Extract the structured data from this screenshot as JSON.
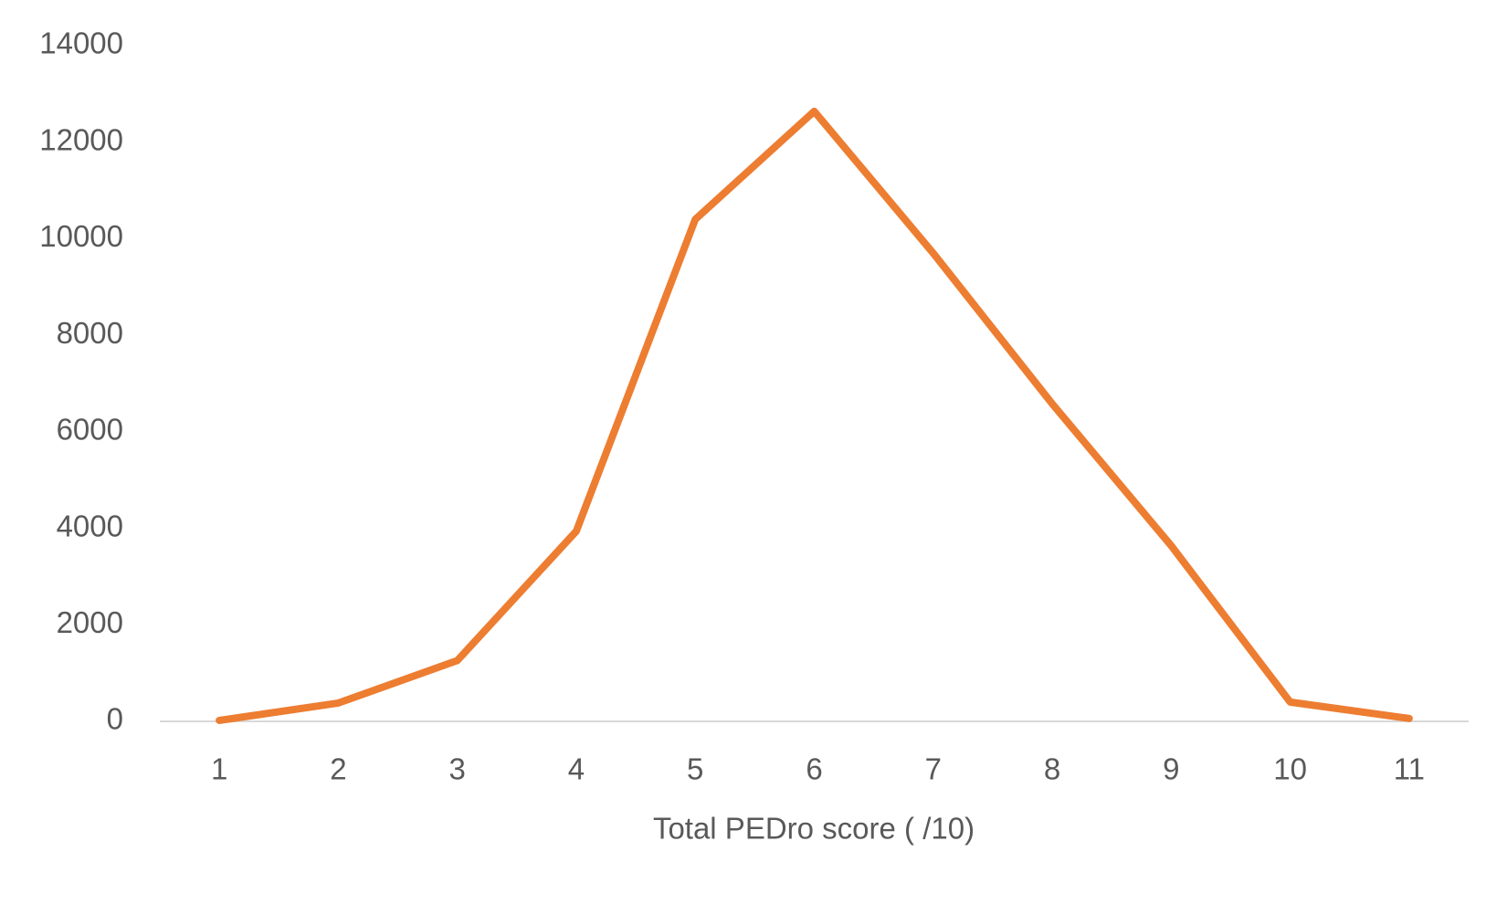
{
  "chart_data": {
    "type": "line",
    "x_label": "Total PEDro score ( /10)",
    "categories": [
      "1",
      "2",
      "3",
      "4",
      "5",
      "6",
      "7",
      "8",
      "9",
      "10",
      "11"
    ],
    "series": [
      {
        "color": "#ED7D31",
        "values": [
          20,
          380,
          1260,
          3940,
          10400,
          12640,
          9700,
          6580,
          3640,
          400,
          60
        ]
      }
    ],
    "ylim": [
      0,
      14000
    ],
    "yticks": [
      0,
      2000,
      4000,
      6000,
      8000,
      10000,
      12000,
      14000
    ],
    "grid": false
  }
}
